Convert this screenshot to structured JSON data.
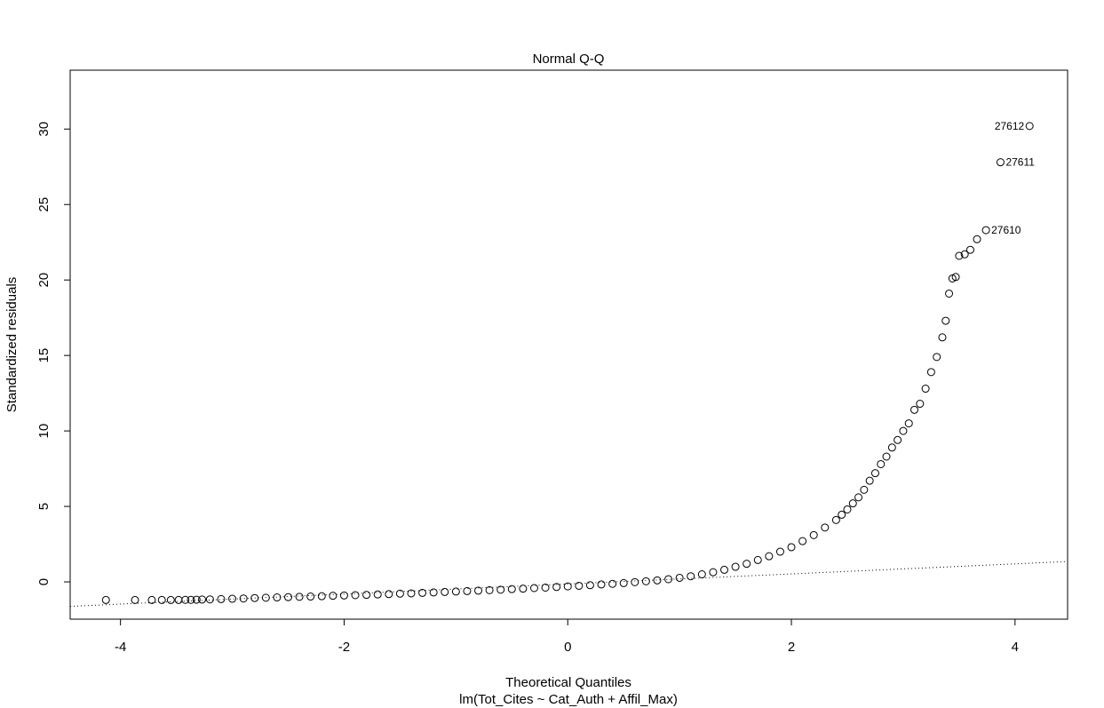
{
  "chart_data": {
    "type": "scatter",
    "title": "Normal Q-Q",
    "x_label": "Theoretical Quantiles",
    "subtitle": "lm(Tot_Cites ~ Cat_Auth + Affil_Max)",
    "y_label": "Standardized residuals",
    "xlim": [
      -4.45,
      4.47
    ],
    "ylim": [
      -2.47,
      33.9
    ],
    "xticks": [
      -4,
      -2,
      0,
      2,
      4
    ],
    "yticks": [
      0,
      5,
      10,
      15,
      20,
      25,
      30
    ],
    "color": "#000000",
    "x": [
      -4.13,
      -3.87,
      -3.72,
      -3.63,
      -3.55,
      -3.48,
      -3.42,
      -3.37,
      -3.32,
      -3.27,
      -3.2,
      -3.1,
      -3.0,
      -2.9,
      -2.8,
      -2.7,
      -2.6,
      -2.5,
      -2.4,
      -2.3,
      -2.2,
      -2.1,
      -2.0,
      -1.9,
      -1.8,
      -1.7,
      -1.6,
      -1.5,
      -1.4,
      -1.3,
      -1.2,
      -1.1,
      -1.0,
      -0.9,
      -0.8,
      -0.7,
      -0.6,
      -0.5,
      -0.4,
      -0.3,
      -0.2,
      -0.1,
      0,
      0.1,
      0.2,
      0.3,
      0.4,
      0.5,
      0.6,
      0.7,
      0.8,
      0.9,
      1.0,
      1.1,
      1.2,
      1.3,
      1.4,
      1.5,
      1.6,
      1.7,
      1.8,
      1.9,
      2.0,
      2.1,
      2.2,
      2.3,
      2.4,
      2.45,
      2.5,
      2.55,
      2.6,
      2.65,
      2.7,
      2.75,
      2.8,
      2.85,
      2.9,
      2.95,
      3.0,
      3.05,
      3.1,
      3.15,
      3.2,
      3.25,
      3.3,
      3.35,
      3.38,
      3.41,
      3.44,
      3.47,
      3.5,
      3.55,
      3.6,
      3.66,
      3.74,
      3.87,
      4.13
    ],
    "values": [
      -1.2,
      -1.2,
      -1.2,
      -1.2,
      -1.2,
      -1.2,
      -1.19,
      -1.19,
      -1.18,
      -1.17,
      -1.16,
      -1.14,
      -1.12,
      -1.1,
      -1.07,
      -1.05,
      -1.03,
      -1.01,
      -0.99,
      -0.97,
      -0.95,
      -0.92,
      -0.9,
      -0.88,
      -0.86,
      -0.83,
      -0.81,
      -0.78,
      -0.76,
      -0.73,
      -0.7,
      -0.67,
      -0.64,
      -0.61,
      -0.58,
      -0.55,
      -0.52,
      -0.48,
      -0.45,
      -0.41,
      -0.38,
      -0.34,
      -0.3,
      -0.26,
      -0.22,
      -0.17,
      -0.13,
      -0.08,
      -0.02,
      0.04,
      0.1,
      0.18,
      0.27,
      0.37,
      0.5,
      0.64,
      0.8,
      1.0,
      1.2,
      1.45,
      1.7,
      2.0,
      2.3,
      2.7,
      3.1,
      3.6,
      4.1,
      4.45,
      4.8,
      5.2,
      5.6,
      6.1,
      6.7,
      7.2,
      7.8,
      8.3,
      8.9,
      9.4,
      10.0,
      10.5,
      11.4,
      11.8,
      12.8,
      13.9,
      14.9,
      16.2,
      17.3,
      19.1,
      20.1,
      20.2,
      21.6,
      21.7,
      22.0,
      22.7,
      23.3,
      27.8,
      30.2
    ],
    "reference_line": {
      "x": [
        -4.45,
        4.47
      ],
      "y": [
        -1.62,
        1.35
      ]
    },
    "annotations": [
      {
        "x": 4.13,
        "y": 30.2,
        "label": "27612",
        "side": "left"
      },
      {
        "x": 3.87,
        "y": 27.8,
        "label": "27611",
        "side": "right"
      },
      {
        "x": 3.74,
        "y": 23.3,
        "label": "27610",
        "side": "right"
      }
    ]
  }
}
